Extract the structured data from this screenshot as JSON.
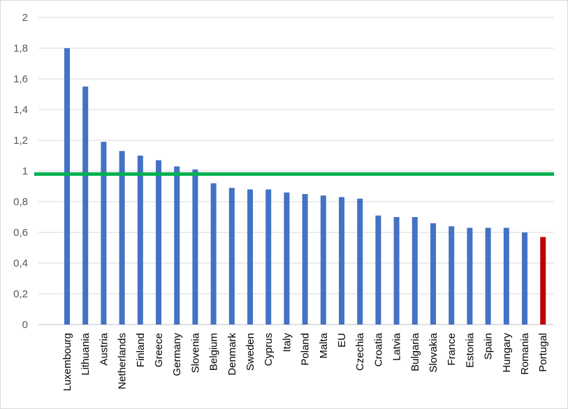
{
  "chart_data": {
    "type": "bar",
    "title": "",
    "xlabel": "",
    "ylabel": "",
    "ylim": [
      0,
      2
    ],
    "yticks": [
      "0",
      "0,2",
      "0,4",
      "0,6",
      "0,8",
      "1",
      "1,2",
      "1,4",
      "1,6",
      "1,8",
      "2"
    ],
    "grid": true,
    "legend": "none",
    "categories": [
      "Luxembourg",
      "Lithuania",
      "Austria",
      "Netherlands",
      "Finland",
      "Greece",
      "Germany",
      "Slovenia",
      "Belgium",
      "Denmark",
      "Sweden",
      "Cyprus",
      "Italy",
      "Poland",
      "Malta",
      "EU",
      "Czechia",
      "Croatia",
      "Latvia",
      "Bulgaria",
      "Slovakia",
      "France",
      "Estonia",
      "Spain",
      "Hungary",
      "Romania",
      "Portugal"
    ],
    "values": [
      1.8,
      1.55,
      1.19,
      1.13,
      1.1,
      1.07,
      1.03,
      1.01,
      0.92,
      0.89,
      0.88,
      0.88,
      0.86,
      0.85,
      0.84,
      0.83,
      0.82,
      0.71,
      0.7,
      0.7,
      0.66,
      0.64,
      0.63,
      0.63,
      0.63,
      0.6,
      0.57
    ],
    "bar_color": "#4472c4",
    "highlight": {
      "category": "Portugal",
      "color": "#c00000"
    },
    "reference_line": {
      "value": 0.98,
      "color": "#00b050"
    },
    "grid_color": "#d9d9d9",
    "axis_color": "#bfbfbf"
  }
}
